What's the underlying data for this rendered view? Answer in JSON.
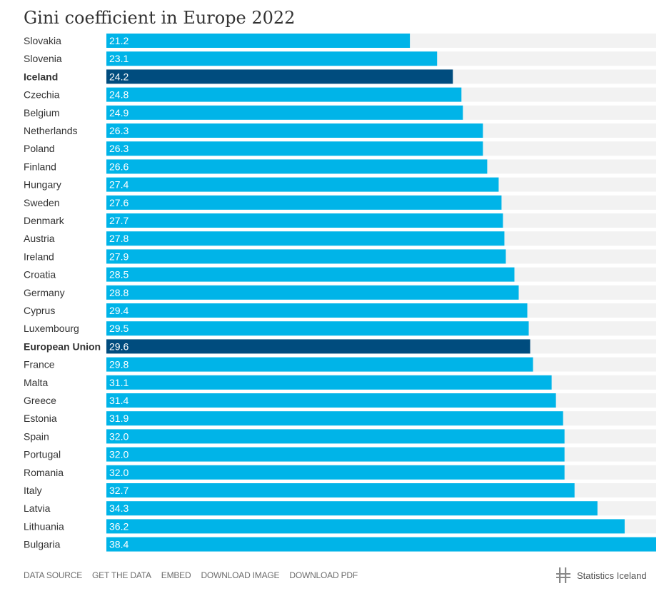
{
  "chart_data": {
    "type": "bar",
    "orientation": "horizontal",
    "title": "Gini coefficient in Europe 2022",
    "categories": [
      "Slovakia",
      "Slovenia",
      "Iceland",
      "Czechia",
      "Belgium",
      "Netherlands",
      "Poland",
      "Finland",
      "Hungary",
      "Sweden",
      "Denmark",
      "Austria",
      "Ireland",
      "Croatia",
      "Germany",
      "Cyprus",
      "Luxembourg",
      "European Union",
      "France",
      "Malta",
      "Greece",
      "Estonia",
      "Spain",
      "Portugal",
      "Romania",
      "Italy",
      "Latvia",
      "Lithuania",
      "Bulgaria"
    ],
    "values": [
      21.2,
      23.1,
      24.2,
      24.8,
      24.9,
      26.3,
      26.3,
      26.6,
      27.4,
      27.6,
      27.7,
      27.8,
      27.9,
      28.5,
      28.8,
      29.4,
      29.5,
      29.6,
      29.8,
      31.1,
      31.4,
      31.9,
      32.0,
      32.0,
      32.0,
      32.7,
      34.3,
      36.2,
      38.4
    ],
    "value_labels": [
      "21.2",
      "23.1",
      "24.2",
      "24.8",
      "24.9",
      "26.3",
      "26.3",
      "26.6",
      "27.4",
      "27.6",
      "27.7",
      "27.8",
      "27.9",
      "28.5",
      "28.8",
      "29.4",
      "29.5",
      "29.6",
      "29.8",
      "31.1",
      "31.4",
      "31.9",
      "32.0",
      "32.0",
      "32.0",
      "32.7",
      "34.3",
      "36.2",
      "38.4"
    ],
    "highlighted": [
      "Iceland",
      "European Union"
    ],
    "xlim": [
      0,
      38.4
    ],
    "grid": false,
    "legend": "none",
    "colors": {
      "bar": "#00b4e8",
      "highlight": "#004c7e",
      "track": "#f2f2f2",
      "label": "#333333",
      "value_label": "#ffffff"
    }
  },
  "footer": {
    "links": [
      "DATA SOURCE",
      "GET THE DATA",
      "EMBED",
      "DOWNLOAD IMAGE",
      "DOWNLOAD PDF"
    ],
    "brand_name": "Statistics Iceland",
    "brand_icon": "statistics-iceland-logo-icon"
  }
}
